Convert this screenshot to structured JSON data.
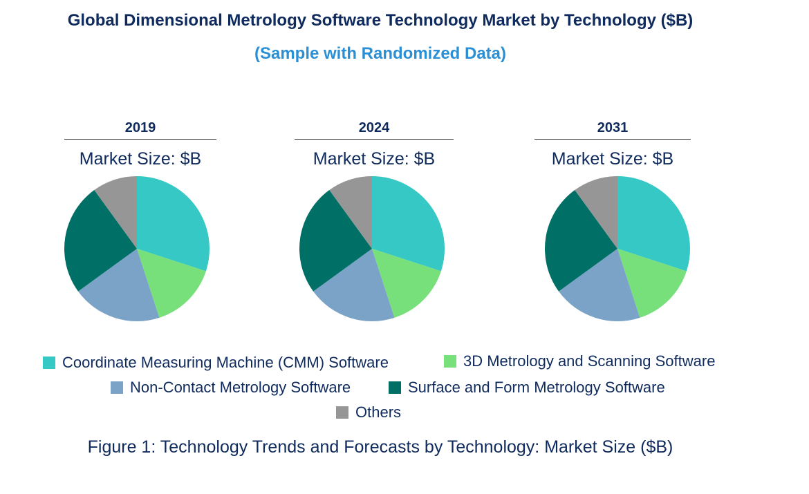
{
  "title": "Global Dimensional Metrology Software Technology Market by Technology ($B)",
  "subtitle": "(Sample with Randomized Data)",
  "caption": "Figure 1: Technology Trends and Forecasts by Technology: Market Size ($B)",
  "chart_data": [
    {
      "type": "pie",
      "year": "2019",
      "label": "Market Size: $B",
      "categories": [
        "Coordinate Measuring Machine (CMM) Software",
        "3D Metrology and Scanning Software",
        "Non-Contact Metrology Software",
        "Surface and Form Metrology Software",
        "Others"
      ],
      "values": [
        30,
        15,
        20,
        25,
        10
      ]
    },
    {
      "type": "pie",
      "year": "2024",
      "label": "Market Size: $B",
      "categories": [
        "Coordinate Measuring Machine (CMM) Software",
        "3D Metrology and Scanning Software",
        "Non-Contact Metrology Software",
        "Surface and Form Metrology Software",
        "Others"
      ],
      "values": [
        30,
        15,
        20,
        25,
        10
      ]
    },
    {
      "type": "pie",
      "year": "2031",
      "label": "Market Size: $B",
      "categories": [
        "Coordinate Measuring Machine (CMM) Software",
        "3D Metrology and Scanning Software",
        "Non-Contact Metrology Software",
        "Surface and Form Metrology Software",
        "Others"
      ],
      "values": [
        30,
        15,
        20,
        25,
        10
      ]
    }
  ],
  "legend": [
    {
      "label": "Coordinate Measuring Machine (CMM) Software",
      "color": "#36c8c4"
    },
    {
      "label": "3D Metrology and Scanning Software",
      "color": "#77e07a"
    },
    {
      "label": "Non-Contact Metrology Software",
      "color": "#7ba3c8"
    },
    {
      "label": "Surface and Form Metrology Software",
      "color": "#007066"
    },
    {
      "label": "Others",
      "color": "#969696"
    }
  ]
}
